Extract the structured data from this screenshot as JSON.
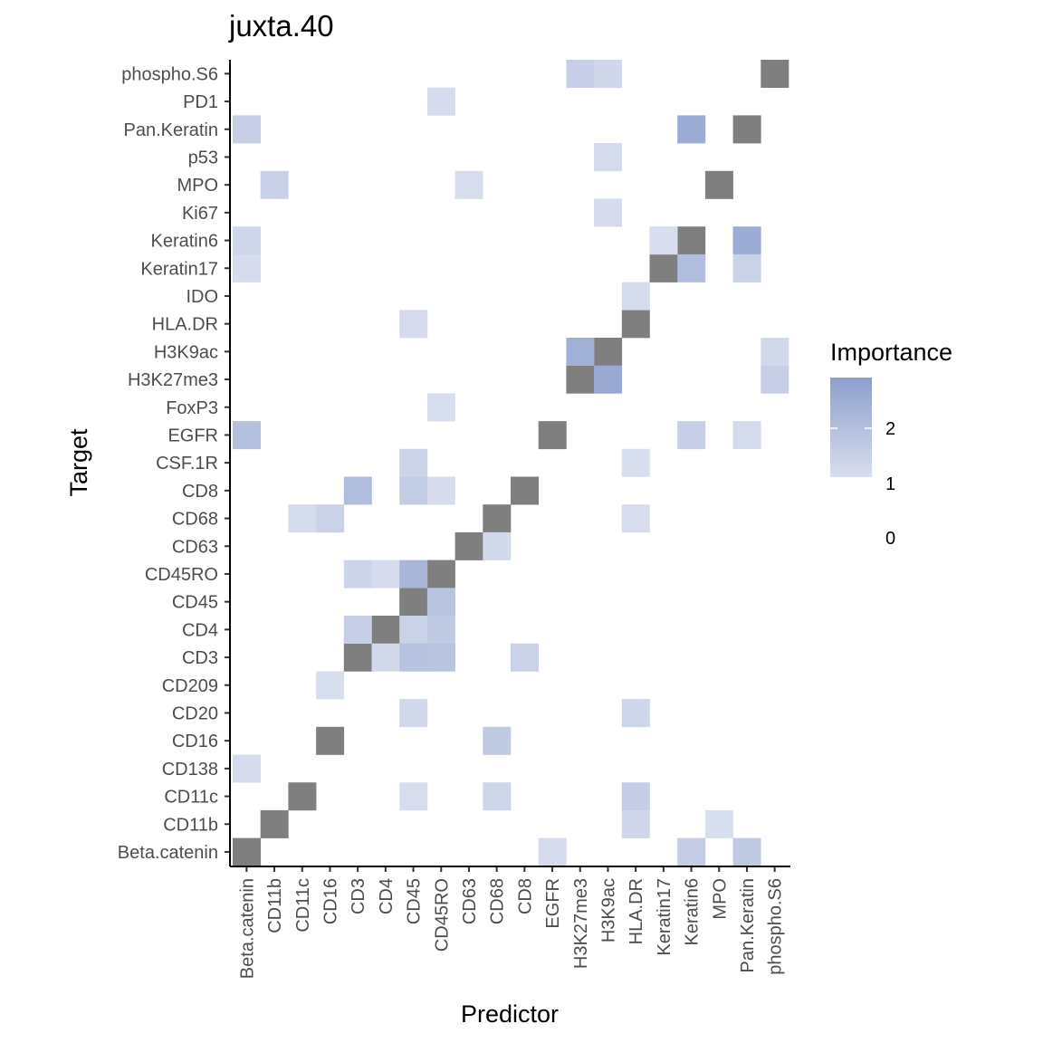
{
  "chart_data": {
    "type": "heatmap",
    "title": "juxta.40",
    "xlabel": "Predictor",
    "ylabel": "Target",
    "predictors": [
      "Beta.catenin",
      "CD11b",
      "CD11c",
      "CD16",
      "CD3",
      "CD4",
      "CD45",
      "CD45RO",
      "CD63",
      "CD68",
      "CD8",
      "EGFR",
      "H3K27me3",
      "H3K9ac",
      "HLA.DR",
      "Keratin17",
      "Keratin6",
      "MPO",
      "Pan.Keratin",
      "phospho.S6"
    ],
    "targets_top_to_bottom": [
      "phospho.S6",
      "PD1",
      "Pan.Keratin",
      "p53",
      "MPO",
      "Ki67",
      "Keratin6",
      "Keratin17",
      "IDO",
      "HLA.DR",
      "H3K9ac",
      "H3K27me3",
      "FoxP3",
      "EGFR",
      "CSF.1R",
      "CD8",
      "CD68",
      "CD63",
      "CD45RO",
      "CD45",
      "CD4",
      "CD3",
      "CD209",
      "CD20",
      "CD16",
      "CD138",
      "CD11c",
      "CD11b",
      "Beta.catenin"
    ],
    "legend": {
      "title": "Importance",
      "labels": [
        "2",
        "1",
        "0"
      ],
      "range": [
        0,
        2.9
      ],
      "low_color": "#ffffff",
      "high_color": "#8d9fcd",
      "na_color": "#7f7f7f"
    },
    "self_cells_na": true,
    "cells": [
      {
        "target": "phospho.S6",
        "predictor": "H3K27me3",
        "value": 1.45
      },
      {
        "target": "phospho.S6",
        "predictor": "H3K9ac",
        "value": 1.2
      },
      {
        "target": "PD1",
        "predictor": "CD45RO",
        "value": 1.05
      },
      {
        "target": "Pan.Keratin",
        "predictor": "Beta.catenin",
        "value": 1.45
      },
      {
        "target": "Pan.Keratin",
        "predictor": "Keratin6",
        "value": 2.5
      },
      {
        "target": "p53",
        "predictor": "H3K9ac",
        "value": 1.1
      },
      {
        "target": "MPO",
        "predictor": "CD11b",
        "value": 1.4
      },
      {
        "target": "MPO",
        "predictor": "CD63",
        "value": 1.02
      },
      {
        "target": "Ki67",
        "predictor": "H3K9ac",
        "value": 1.08
      },
      {
        "target": "Keratin6",
        "predictor": "Beta.catenin",
        "value": 1.25
      },
      {
        "target": "Keratin6",
        "predictor": "Keratin17",
        "value": 1.02
      },
      {
        "target": "Keratin6",
        "predictor": "Pan.Keratin",
        "value": 2.5
      },
      {
        "target": "Keratin17",
        "predictor": "Beta.catenin",
        "value": 1.05
      },
      {
        "target": "Keratin17",
        "predictor": "Keratin6",
        "value": 2.0
      },
      {
        "target": "Keratin17",
        "predictor": "Pan.Keratin",
        "value": 1.35
      },
      {
        "target": "IDO",
        "predictor": "HLA.DR",
        "value": 1.1
      },
      {
        "target": "HLA.DR",
        "predictor": "CD45",
        "value": 1.08
      },
      {
        "target": "H3K9ac",
        "predictor": "H3K27me3",
        "value": 2.4
      },
      {
        "target": "H3K9ac",
        "predictor": "phospho.S6",
        "value": 1.15
      },
      {
        "target": "H3K27me3",
        "predictor": "H3K9ac",
        "value": 2.6
      },
      {
        "target": "H3K27me3",
        "predictor": "phospho.S6",
        "value": 1.45
      },
      {
        "target": "FoxP3",
        "predictor": "CD45RO",
        "value": 1.01
      },
      {
        "target": "EGFR",
        "predictor": "Beta.catenin",
        "value": 1.9
      },
      {
        "target": "EGFR",
        "predictor": "Keratin6",
        "value": 1.45
      },
      {
        "target": "EGFR",
        "predictor": "Pan.Keratin",
        "value": 1.1
      },
      {
        "target": "CSF.1R",
        "predictor": "CD45",
        "value": 1.3
      },
      {
        "target": "CSF.1R",
        "predictor": "HLA.DR",
        "value": 1.01
      },
      {
        "target": "CD8",
        "predictor": "CD3",
        "value": 2.0
      },
      {
        "target": "CD8",
        "predictor": "CD45",
        "value": 1.55
      },
      {
        "target": "CD8",
        "predictor": "CD45RO",
        "value": 1.05
      },
      {
        "target": "CD68",
        "predictor": "CD11c",
        "value": 1.1
      },
      {
        "target": "CD68",
        "predictor": "CD16",
        "value": 1.35
      },
      {
        "target": "CD68",
        "predictor": "HLA.DR",
        "value": 1.02
      },
      {
        "target": "CD63",
        "predictor": "CD68",
        "value": 1.15
      },
      {
        "target": "CD45RO",
        "predictor": "CD3",
        "value": 1.3
      },
      {
        "target": "CD45RO",
        "predictor": "CD4",
        "value": 1.05
      },
      {
        "target": "CD45RO",
        "predictor": "CD45",
        "value": 2.2
      },
      {
        "target": "CD45",
        "predictor": "CD45RO",
        "value": 1.8
      },
      {
        "target": "CD4",
        "predictor": "CD3",
        "value": 1.45
      },
      {
        "target": "CD4",
        "predictor": "CD45",
        "value": 1.35
      },
      {
        "target": "CD4",
        "predictor": "CD45RO",
        "value": 1.6
      },
      {
        "target": "CD3",
        "predictor": "CD4",
        "value": 1.15
      },
      {
        "target": "CD3",
        "predictor": "CD45",
        "value": 1.85
      },
      {
        "target": "CD3",
        "predictor": "CD45RO",
        "value": 1.8
      },
      {
        "target": "CD3",
        "predictor": "CD8",
        "value": 1.35
      },
      {
        "target": "CD209",
        "predictor": "CD16",
        "value": 1.01
      },
      {
        "target": "CD20",
        "predictor": "CD45",
        "value": 1.15
      },
      {
        "target": "CD20",
        "predictor": "HLA.DR",
        "value": 1.25
      },
      {
        "target": "CD16",
        "predictor": "CD68",
        "value": 1.6
      },
      {
        "target": "CD138",
        "predictor": "Beta.catenin",
        "value": 1.05
      },
      {
        "target": "CD11c",
        "predictor": "CD45",
        "value": 1.02
      },
      {
        "target": "CD11c",
        "predictor": "CD68",
        "value": 1.25
      },
      {
        "target": "CD11c",
        "predictor": "HLA.DR",
        "value": 1.5
      },
      {
        "target": "CD11b",
        "predictor": "HLA.DR",
        "value": 1.2
      },
      {
        "target": "CD11b",
        "predictor": "MPO",
        "value": 1.01
      },
      {
        "target": "Beta.catenin",
        "predictor": "EGFR",
        "value": 1.05
      },
      {
        "target": "Beta.catenin",
        "predictor": "Keratin6",
        "value": 1.5
      },
      {
        "target": "Beta.catenin",
        "predictor": "Pan.Keratin",
        "value": 1.6
      }
    ]
  }
}
